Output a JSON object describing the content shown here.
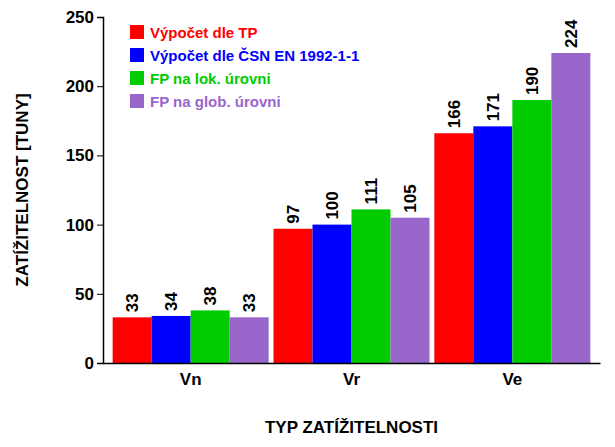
{
  "chart_data": {
    "type": "bar",
    "x_label": "TYP ZATÍŽITELNOSTI",
    "y_label": "ZATÍŽITELNOST [TUNY]",
    "categories": [
      "Vn",
      "Vr",
      "Ve"
    ],
    "series": [
      {
        "name": "Výpočet dle TP",
        "color": "#ff0000",
        "values": [
          33,
          97,
          166
        ]
      },
      {
        "name": "Výpočet dle ČSN EN 1992-1-1",
        "color": "#0000ff",
        "values": [
          34,
          100,
          171
        ]
      },
      {
        "name": "FP na lok. úrovni",
        "color": "#00cc00",
        "values": [
          38,
          111,
          190
        ]
      },
      {
        "name": "FP na glob. úrovni",
        "color": "#9966cc",
        "values": [
          33,
          105,
          224
        ]
      }
    ],
    "ylim": [
      0,
      250
    ],
    "yticks": [
      0,
      50,
      100,
      150,
      200,
      250
    ],
    "grid": false,
    "legend": "upper left",
    "data_labels": true
  }
}
